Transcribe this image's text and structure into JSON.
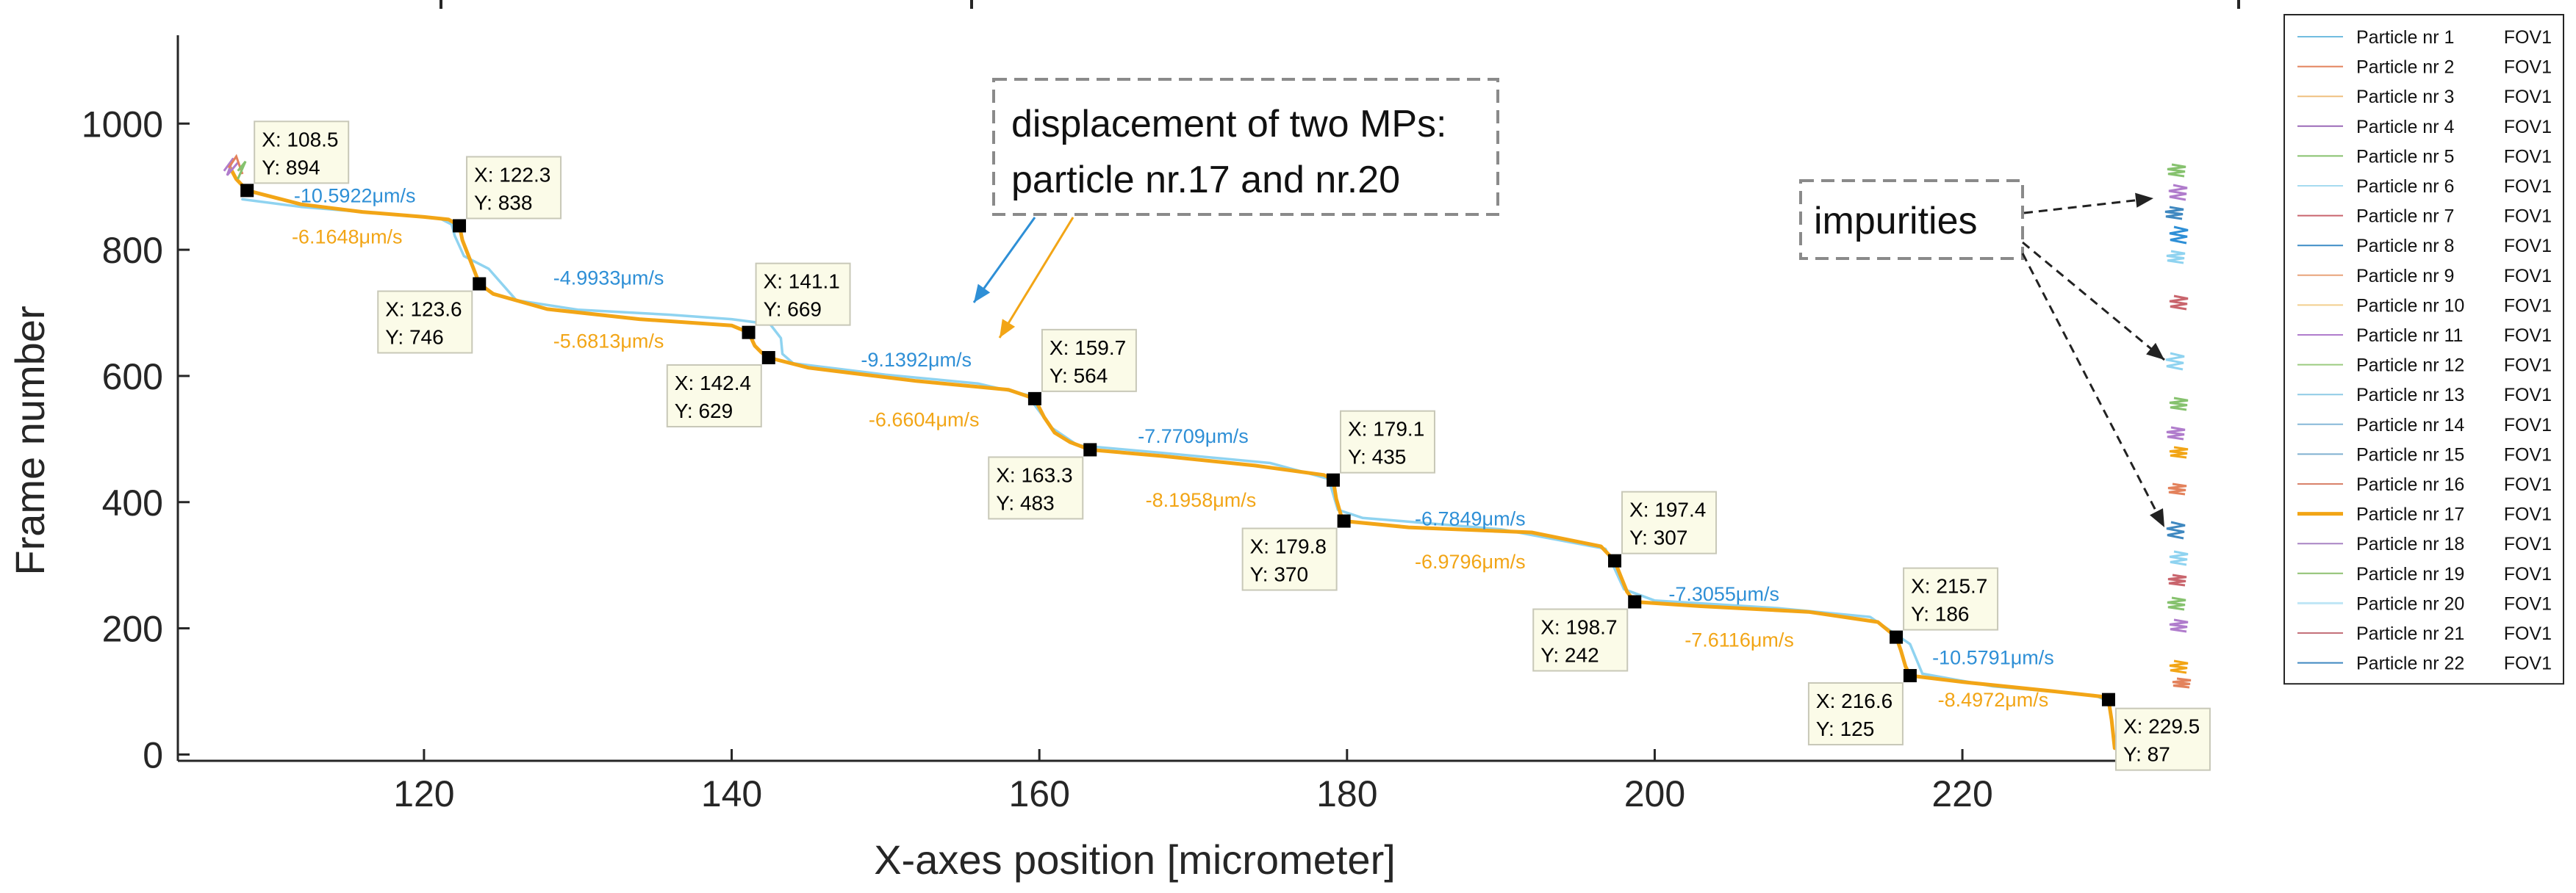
{
  "chart_data": {
    "type": "line",
    "xlabel": "X-axes position [micrometer]",
    "ylabel": "Frame number",
    "xlim": [
      104,
      236
    ],
    "ylim": [
      -10,
      1140
    ],
    "xticks": [
      120,
      140,
      160,
      180,
      200,
      220
    ],
    "yticks": [
      0,
      200,
      400,
      600,
      800,
      1000
    ],
    "colors": {
      "blue": "#2e8fd6",
      "orange": "#f2a516",
      "lightblue": "#8fd3f0",
      "marker": "#000000"
    },
    "datatips": [
      {
        "x": 108.5,
        "y": 894,
        "xtext": "X: 108.5",
        "ytext": "Y: 894",
        "pos": "above-right"
      },
      {
        "x": 122.3,
        "y": 838,
        "xtext": "X: 122.3",
        "ytext": "Y: 838",
        "pos": "above-right"
      },
      {
        "x": 123.6,
        "y": 746,
        "xtext": "X: 123.6",
        "ytext": "Y: 746",
        "pos": "below-left"
      },
      {
        "x": 141.1,
        "y": 669,
        "xtext": "X: 141.1",
        "ytext": "Y: 669",
        "pos": "above-right"
      },
      {
        "x": 142.4,
        "y": 629,
        "xtext": "X: 142.4",
        "ytext": "Y: 629",
        "pos": "below-left"
      },
      {
        "x": 159.7,
        "y": 564,
        "xtext": "X: 159.7",
        "ytext": "Y: 564",
        "pos": "above-right"
      },
      {
        "x": 163.3,
        "y": 483,
        "xtext": "X: 163.3",
        "ytext": "Y: 483",
        "pos": "below-left"
      },
      {
        "x": 179.1,
        "y": 435,
        "xtext": "X: 179.1",
        "ytext": "Y: 435",
        "pos": "above-right"
      },
      {
        "x": 179.8,
        "y": 370,
        "xtext": "X: 179.8",
        "ytext": "Y: 370",
        "pos": "below-left"
      },
      {
        "x": 197.4,
        "y": 307,
        "xtext": "X: 197.4",
        "ytext": "Y: 307",
        "pos": "above-right"
      },
      {
        "x": 198.7,
        "y": 242,
        "xtext": "X: 198.7",
        "ytext": "Y: 242",
        "pos": "below-left"
      },
      {
        "x": 215.7,
        "y": 186,
        "xtext": "X: 215.7",
        "ytext": "Y: 186",
        "pos": "above-right"
      },
      {
        "x": 216.6,
        "y": 125,
        "xtext": "X: 216.6",
        "ytext": "Y: 125",
        "pos": "below-left"
      },
      {
        "x": 229.5,
        "y": 87,
        "xtext": "X: 229.5",
        "ytext": "Y: 87",
        "pos": "below-right"
      }
    ],
    "speed_labels": [
      {
        "text": "-10.5922μm/s",
        "color": "blue",
        "x": 115.5,
        "y": 875
      },
      {
        "text": "-6.1648μm/s",
        "color": "orange",
        "x": 115.0,
        "y": 810
      },
      {
        "text": "-4.9933μm/s",
        "color": "blue",
        "x": 132.0,
        "y": 745
      },
      {
        "text": "-5.6813μm/s",
        "color": "orange",
        "x": 132.0,
        "y": 645
      },
      {
        "text": "-9.1392μm/s",
        "color": "blue",
        "x": 152.0,
        "y": 615
      },
      {
        "text": "-6.6604μm/s",
        "color": "orange",
        "x": 152.5,
        "y": 520
      },
      {
        "text": "-7.7709μm/s",
        "color": "blue",
        "x": 170.0,
        "y": 494
      },
      {
        "text": "-8.1958μm/s",
        "color": "orange",
        "x": 170.5,
        "y": 393
      },
      {
        "text": "-6.7849μm/s",
        "color": "blue",
        "x": 188.0,
        "y": 363
      },
      {
        "text": "-6.9796μm/s",
        "color": "orange",
        "x": 188.0,
        "y": 295
      },
      {
        "text": "-7.3055μm/s",
        "color": "blue",
        "x": 204.5,
        "y": 244
      },
      {
        "text": "-7.6116μm/s",
        "color": "orange",
        "x": 205.5,
        "y": 171
      },
      {
        "text": "-10.5791μm/s",
        "color": "blue",
        "x": 222.0,
        "y": 143
      },
      {
        "text": "-8.4972μm/s",
        "color": "orange",
        "x": 222.0,
        "y": 76
      }
    ],
    "series": [
      {
        "name": "Particle nr 17",
        "color": "orange",
        "points": [
          [
            107.4,
            930
          ],
          [
            107.8,
            912
          ],
          [
            108.5,
            894
          ],
          [
            112,
            872
          ],
          [
            116,
            860
          ],
          [
            120,
            852
          ],
          [
            121.6,
            848
          ],
          [
            122.3,
            838
          ],
          [
            122.5,
            815
          ],
          [
            122.9,
            790
          ],
          [
            123.3,
            765
          ],
          [
            123.6,
            746
          ],
          [
            124.5,
            730
          ],
          [
            128,
            706
          ],
          [
            134,
            690
          ],
          [
            140,
            680
          ],
          [
            141.1,
            669
          ],
          [
            141.5,
            648
          ],
          [
            141.9,
            638
          ],
          [
            142.4,
            629
          ],
          [
            145,
            613
          ],
          [
            152,
            592
          ],
          [
            158,
            578
          ],
          [
            159.7,
            564
          ],
          [
            160.3,
            535
          ],
          [
            161,
            510
          ],
          [
            162,
            495
          ],
          [
            163.3,
            483
          ],
          [
            168,
            473
          ],
          [
            174,
            458
          ],
          [
            178.5,
            443
          ],
          [
            179.1,
            435
          ],
          [
            179.3,
            405
          ],
          [
            179.6,
            380
          ],
          [
            179.8,
            370
          ],
          [
            184,
            360
          ],
          [
            192,
            352
          ],
          [
            196.5,
            330
          ],
          [
            197.4,
            307
          ],
          [
            197.8,
            282
          ],
          [
            198.2,
            258
          ],
          [
            198.7,
            242
          ],
          [
            203,
            235
          ],
          [
            210,
            226
          ],
          [
            214.5,
            210
          ],
          [
            215.7,
            186
          ],
          [
            216,
            165
          ],
          [
            216.3,
            140
          ],
          [
            216.6,
            125
          ],
          [
            220,
            115
          ],
          [
            226,
            100
          ],
          [
            229,
            92
          ],
          [
            229.5,
            87
          ],
          [
            229.7,
            55
          ],
          [
            229.9,
            10
          ]
        ]
      },
      {
        "name": "Particle nr 20",
        "color": "lightblue",
        "points": [
          [
            108.2,
            880
          ],
          [
            112,
            868
          ],
          [
            118,
            856
          ],
          [
            121,
            850
          ],
          [
            121.8,
            840
          ],
          [
            122,
            822
          ],
          [
            122.6,
            790
          ],
          [
            124.2,
            770
          ],
          [
            126,
            720
          ],
          [
            130,
            705
          ],
          [
            136,
            697
          ],
          [
            140,
            690
          ],
          [
            142.5,
            682
          ],
          [
            143.2,
            660
          ],
          [
            143.3,
            635
          ],
          [
            144,
            620
          ],
          [
            150,
            602
          ],
          [
            156,
            588
          ],
          [
            159.2,
            570
          ],
          [
            160.8,
            518
          ],
          [
            162.5,
            490
          ],
          [
            168,
            478
          ],
          [
            175,
            462
          ],
          [
            178.8,
            437
          ],
          [
            179.4,
            388
          ],
          [
            181,
            375
          ],
          [
            190,
            357
          ],
          [
            196.8,
            326
          ],
          [
            198,
            262
          ],
          [
            200,
            244
          ],
          [
            208,
            232
          ],
          [
            214,
            218
          ],
          [
            216.6,
            175
          ],
          [
            217.4,
            128
          ],
          [
            222,
            108
          ],
          [
            228.6,
            94
          ],
          [
            229.4,
            85
          ]
        ]
      }
    ],
    "legend": [
      {
        "label": "Particle nr 1",
        "file": "FOV1",
        "color": "#72bde0",
        "lw": 2
      },
      {
        "label": "Particle nr 2",
        "file": "FOV1",
        "color": "#e3825c",
        "lw": 2
      },
      {
        "label": "Particle nr 3",
        "file": "FOV1",
        "color": "#efc080",
        "lw": 2
      },
      {
        "label": "Particle nr 4",
        "file": "FOV1",
        "color": "#9b6ab8",
        "lw": 2
      },
      {
        "label": "Particle nr 5",
        "file": "FOV1",
        "color": "#86c26e",
        "lw": 2
      },
      {
        "label": "Particle nr 6",
        "file": "FOV1",
        "color": "#a6dbf0",
        "lw": 2
      },
      {
        "label": "Particle nr 7",
        "file": "FOV1",
        "color": "#c9656d",
        "lw": 2
      },
      {
        "label": "Particle nr 8",
        "file": "FOV1",
        "color": "#3c8cc6",
        "lw": 2
      },
      {
        "label": "Particle nr 9",
        "file": "FOV1",
        "color": "#e8a37a",
        "lw": 2
      },
      {
        "label": "Particle nr 10",
        "file": "FOV1",
        "color": "#f2cf8e",
        "lw": 2
      },
      {
        "label": "Particle nr 11",
        "file": "FOV1",
        "color": "#b07ccc",
        "lw": 2
      },
      {
        "label": "Particle nr 12",
        "file": "FOV1",
        "color": "#9ccc80",
        "lw": 2
      },
      {
        "label": "Particle nr 13",
        "file": "FOV1",
        "color": "#8fcbe6",
        "lw": 2
      },
      {
        "label": "Particle nr 14",
        "file": "FOV1",
        "color": "#86b8d8",
        "lw": 2
      },
      {
        "label": "Particle nr 15",
        "file": "FOV1",
        "color": "#7fb0d0",
        "lw": 2
      },
      {
        "label": "Particle nr 16",
        "file": "FOV1",
        "color": "#d9826a",
        "lw": 2
      },
      {
        "label": "Particle nr 17",
        "file": "FOV1",
        "color": "#f2a516",
        "lw": 5
      },
      {
        "label": "Particle nr 18",
        "file": "FOV1",
        "color": "#a884c4",
        "lw": 2
      },
      {
        "label": "Particle nr 19",
        "file": "FOV1",
        "color": "#8ec070",
        "lw": 2
      },
      {
        "label": "Particle nr 20",
        "file": "FOV1",
        "color": "#bfe6f6",
        "lw": 3
      },
      {
        "label": "Particle nr 21",
        "file": "FOV1",
        "color": "#c4707a",
        "lw": 2
      },
      {
        "label": "Particle nr 22",
        "file": "FOV1",
        "color": "#3f88c0",
        "lw": 2
      }
    ],
    "annotations": {
      "mps_line1": "displacement of two MPs:",
      "mps_line2": "particle nr.17 and nr.20",
      "impurities": "impurities"
    }
  }
}
